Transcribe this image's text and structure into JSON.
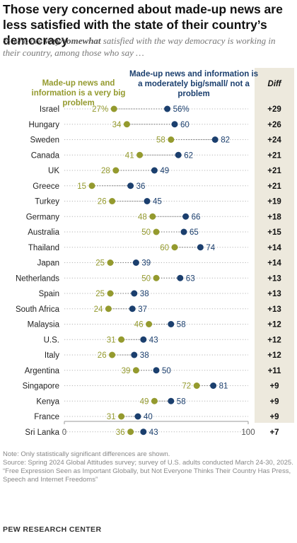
{
  "title": "Those very concerned about made-up news are less satisfied with the state of their country’s democracy",
  "subtitle": {
    "prefix": "% who are ",
    "bold": "very/somewhat",
    "suffix": " satisfied with the way democracy is working in their country, among those who say …"
  },
  "colors": {
    "small_problem": "#1b3f6e",
    "big_problem": "#949a2e",
    "diff_bg": "#ede9dd"
  },
  "chart_data": {
    "type": "dot-plot",
    "categories": [
      "Israel",
      "Hungary",
      "Sweden",
      "Canada",
      "UK",
      "Greece",
      "Turkey",
      "Germany",
      "Australia",
      "Thailand",
      "Japan",
      "Netherlands",
      "Spain",
      "South Africa",
      "Malaysia",
      "U.S.",
      "Italy",
      "Argentina",
      "Singapore",
      "Kenya",
      "France",
      "Sri Lanka"
    ],
    "series": [
      {
        "name": "Made-up news and information is a very big problem",
        "values": [
          27,
          34,
          58,
          41,
          28,
          15,
          26,
          48,
          50,
          60,
          25,
          50,
          25,
          24,
          46,
          31,
          26,
          39,
          72,
          49,
          31,
          36
        ],
        "labels": [
          "27%",
          "34",
          "58",
          "41",
          "28",
          "15",
          "26",
          "48",
          "50",
          "60",
          "25",
          "50",
          "25",
          "24",
          "46",
          "31",
          "26",
          "39",
          "72",
          "49",
          "31",
          "36"
        ]
      },
      {
        "name": "Made-up news and information is a moderately big/small/ not a problem",
        "values": [
          56,
          60,
          82,
          62,
          49,
          36,
          45,
          66,
          65,
          74,
          39,
          63,
          38,
          37,
          58,
          43,
          38,
          50,
          81,
          58,
          40,
          43
        ],
        "labels": [
          "56%",
          "60",
          "82",
          "62",
          "49",
          "36",
          "45",
          "66",
          "65",
          "74",
          "39",
          "63",
          "38",
          "37",
          "58",
          "43",
          "38",
          "50",
          "81",
          "58",
          "40",
          "43"
        ]
      }
    ],
    "diff_header": "Diff",
    "diff": [
      "+29",
      "+26",
      "+24",
      "+21",
      "+21",
      "+21",
      "+19",
      "+18",
      "+15",
      "+14",
      "+14",
      "+13",
      "+13",
      "+13",
      "+12",
      "+12",
      "+12",
      "+11",
      "+9",
      "+9",
      "+9",
      "+7"
    ],
    "x_ticks": [
      "0",
      "100"
    ],
    "xlim": [
      0,
      100
    ]
  },
  "legend": {
    "big": "Made-up news and information is a very big problem",
    "small": "Made-up news and information is a moderately big/small/ not a problem"
  },
  "footer": {
    "note": "Note: Only statistically significant differences are shown.",
    "source": "Source: Spring 2024 Global Attitudes survey; survey of U.S. adults conducted March 24-30, 2025.",
    "report": "“Free Expression Seen as Important Globally, but Not Everyone Thinks Their Country Has Press, Speech and Internet Freedoms”"
  },
  "brand": "PEW RESEARCH CENTER"
}
